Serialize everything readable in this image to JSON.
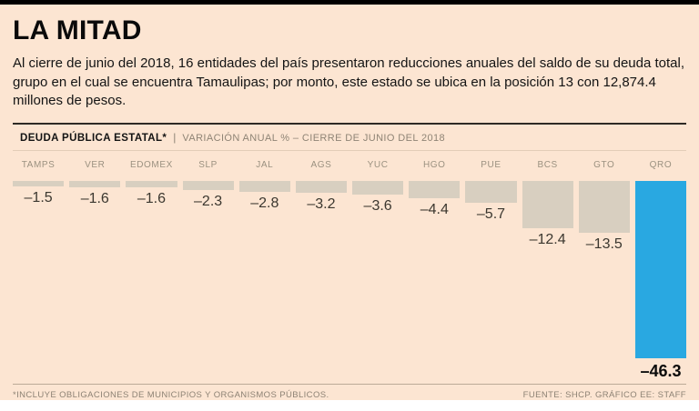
{
  "title": "LA MITAD",
  "intro": "Al cierre de junio del 2018, 16 entidades del país presentaron reducciones anuales del saldo de su deuda total, grupo en el cual se encuentra Tamaulipas; por monto, este estado se ubica en la posición 13 con 12,874.4 millones de pesos.",
  "chart_header": {
    "title": "DEUDA PÚBLICA ESTATAL*",
    "separator": "|",
    "subtitle": "VARIACIÓN ANUAL % – CIERRE DE JUNIO DEL 2018"
  },
  "chart_data": {
    "type": "bar",
    "orientation": "vertical-negative",
    "title": "DEUDA PÚBLICA ESTATAL*",
    "subtitle": "VARIACIÓN ANUAL % – CIERRE DE JUNIO DEL 2018",
    "categories": [
      "TAMPS",
      "VER",
      "EDOMEX",
      "SLP",
      "JAL",
      "AGS",
      "YUC",
      "HGO",
      "PUE",
      "BCS",
      "GTO",
      "QRO"
    ],
    "values": [
      -1.5,
      -1.6,
      -1.6,
      -2.3,
      -2.8,
      -3.2,
      -3.6,
      -4.4,
      -5.7,
      -12.4,
      -13.5,
      -46.3
    ],
    "value_labels": [
      "–1.5",
      "–1.6",
      "–1.6",
      "–2.3",
      "–2.8",
      "–3.2",
      "–3.6",
      "–4.4",
      "–5.7",
      "–12.4",
      "–13.5",
      "–46.3"
    ],
    "ylim": [
      -46.3,
      0
    ],
    "highlight_category": "QRO",
    "bar_color": "#d8cfc0",
    "highlight_color": "#29a8e1",
    "grid": false,
    "legend": false
  },
  "footer": {
    "note": "*INCLUYE OBLIGACIONES DE MUNICIPIOS Y ORGANISMOS PÚBLICOS.",
    "source": "FUENTE: SHCP.  GRÁFICO EE: STAFF"
  },
  "colors": {
    "background": "#fce5d2",
    "top_rule": "#000000",
    "bar": "#d8cfc0",
    "highlight": "#29a8e1",
    "category_label": "#9b9180",
    "value_label": "#3b372f"
  }
}
